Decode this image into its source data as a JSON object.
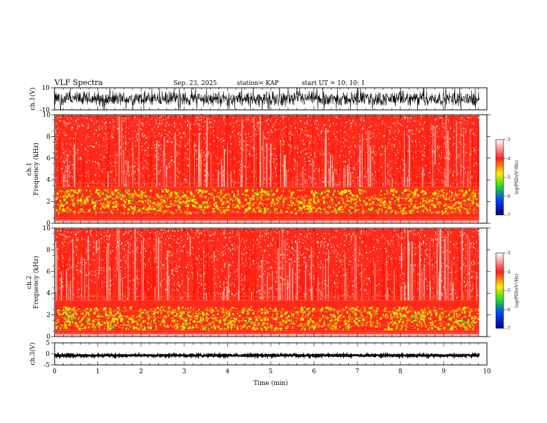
{
  "header": {
    "title": "VLF Spectra",
    "date": "Sep. 23, 2025",
    "station": "station= KAP",
    "start": "start  UT  =   10: 10: 1"
  },
  "chart_data": {
    "type": "heatmap",
    "title": "VLF Spectra",
    "xlabel": "Time  (min)",
    "xlim": [
      0,
      10
    ],
    "x_ticks": [
      "0",
      "1",
      "2",
      "3",
      "4",
      "5",
      "6",
      "7",
      "8",
      "9",
      "10"
    ],
    "data_end_min": 9.82,
    "panels": [
      {
        "name": "ch1-waveform",
        "type": "line",
        "ylabel": "ch.1(V)",
        "ylim": [
          -10,
          10
        ],
        "y_ticks": [
          "10",
          "-10"
        ],
        "amplitude_v": 8
      },
      {
        "name": "ch1-spectrogram",
        "type": "heatmap",
        "ylabel_top": "ch.1",
        "ylabel": "Frequency  (kHz)",
        "ylim": [
          0,
          10
        ],
        "y_ticks": [
          "0",
          "2",
          "4",
          "6",
          "8",
          "10"
        ],
        "green_band_khz": [
          1.0,
          3.2
        ],
        "colorbar_label": "log(PSD)(V²/Hz)",
        "colorbar_ticks": [
          "-3",
          "-4",
          "-5",
          "-6",
          "-7"
        ],
        "colorbar_range": [
          -7,
          -3
        ]
      },
      {
        "name": "ch2-spectrogram",
        "type": "heatmap",
        "ylabel_top": "ch.2",
        "ylabel": "Frequency  (kHz)",
        "ylim": [
          0,
          10
        ],
        "y_ticks": [
          "0",
          "2",
          "4",
          "6",
          "8",
          "10"
        ],
        "green_band_khz": [
          0.7,
          2.8
        ],
        "colorbar_label": "log(PSD)(V²/Hz)",
        "colorbar_ticks": [
          "-3",
          "-4",
          "-5",
          "-6",
          "-7"
        ],
        "colorbar_range": [
          -7,
          -3
        ]
      },
      {
        "name": "ch3-waveform",
        "type": "line",
        "ylabel": "ch.3(V)",
        "ylim": [
          -5,
          5
        ],
        "y_ticks": [
          "5",
          "0",
          "-5"
        ],
        "amplitude_v": 0.5,
        "offset_v": -0.7
      }
    ]
  }
}
